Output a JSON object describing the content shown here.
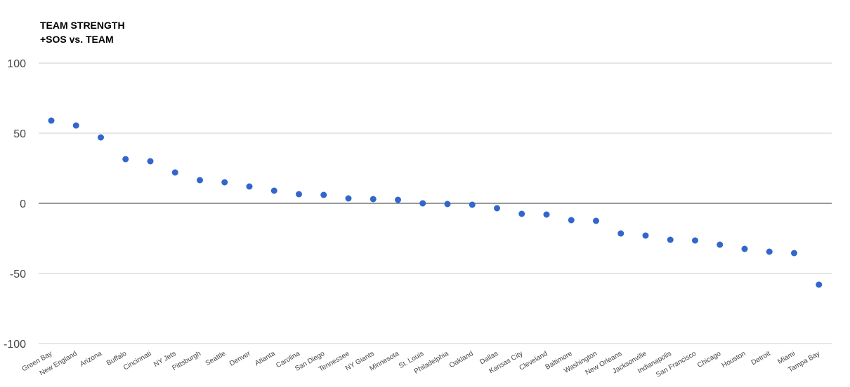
{
  "chart_data": {
    "type": "scatter",
    "title_lines": [
      "TEAM STRENGTH",
      "+SOS vs. TEAM"
    ],
    "xlabel": "",
    "ylabel": "",
    "ylim": [
      -100,
      100
    ],
    "yticks": [
      100,
      50,
      0,
      -50,
      -100
    ],
    "grid": true,
    "legend": "none",
    "point_color": "#3366cc",
    "grid_color": "#cccccc",
    "zero_line_color": "#333333",
    "categories": [
      "Green Bay",
      "New England",
      "Arizona",
      "Buffalo",
      "Cincinnati",
      "NY Jets",
      "Pittsburgh",
      "Seattle",
      "Denver",
      "Atlanta",
      "Carolina",
      "San Diego",
      "Tennessee",
      "NY Giants",
      "Minnesota",
      "St. Louis",
      "Philadelphia",
      "Oakland",
      "Dallas",
      "Kansas City",
      "Cleveland",
      "Baltimore",
      "Washington",
      "New Orleans",
      "Jacksonville",
      "Indianapolis",
      "San Francisco",
      "Chicago",
      "Houston",
      "Detroit",
      "Miami",
      "Tampa Bay"
    ],
    "values": [
      59,
      55.5,
      47,
      31.5,
      30,
      22,
      16.5,
      15,
      12,
      9,
      6.5,
      6,
      3.5,
      3,
      2.5,
      0,
      -0.5,
      -1,
      -3.5,
      -7.5,
      -8,
      -12,
      -12.5,
      -21.5,
      -23,
      -26,
      -26.5,
      -29.5,
      -32.5,
      -34.5,
      -35.5,
      -58
    ]
  }
}
